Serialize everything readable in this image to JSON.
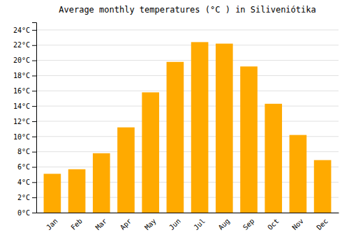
{
  "chart_data": {
    "type": "bar",
    "title": "Average monthly temperatures (°C ) in Siliveniótika",
    "categories": [
      "Jan",
      "Feb",
      "Mar",
      "Apr",
      "May",
      "Jun",
      "Jul",
      "Aug",
      "Sep",
      "Oct",
      "Nov",
      "Dec"
    ],
    "values": [
      5.1,
      5.7,
      7.8,
      11.2,
      15.8,
      19.8,
      22.4,
      22.2,
      19.2,
      14.3,
      10.2,
      6.9
    ],
    "color": "#FFAA00",
    "ylim": [
      0,
      25
    ],
    "yticks": [
      {
        "value": 0,
        "label": "0°C"
      },
      {
        "value": 2,
        "label": "2°C"
      },
      {
        "value": 4,
        "label": "4°C"
      },
      {
        "value": 6,
        "label": "6°C"
      },
      {
        "value": 8,
        "label": "8°C"
      },
      {
        "value": 10,
        "label": "10°C"
      },
      {
        "value": 12,
        "label": "12°C"
      },
      {
        "value": 14,
        "label": "14°C"
      },
      {
        "value": 16,
        "label": "16°C"
      },
      {
        "value": 18,
        "label": "18°C"
      },
      {
        "value": 20,
        "label": "20°C"
      },
      {
        "value": 22,
        "label": "22°C"
      },
      {
        "value": 24,
        "label": "24°C"
      }
    ],
    "grid": true
  }
}
